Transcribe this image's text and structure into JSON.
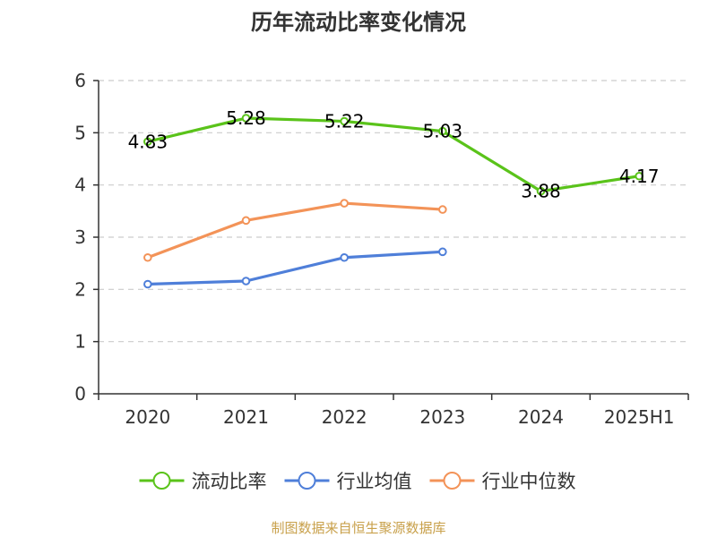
{
  "chart_data": {
    "type": "line",
    "title": "历年流动比率变化情况",
    "categories": [
      "2020",
      "2021",
      "2022",
      "2023",
      "2024",
      "2025H1"
    ],
    "ylim": [
      0,
      6
    ],
    "yticks": [
      "0",
      "1",
      "2",
      "3",
      "4",
      "5",
      "6"
    ],
    "grid": true,
    "legend_position": "bottom",
    "series": [
      {
        "name": "流动比率",
        "color": "#5ac31a",
        "values": [
          4.83,
          5.28,
          5.22,
          5.03,
          3.88,
          4.17
        ],
        "labels": [
          "4.83",
          "5.28",
          "5.22",
          "5.03",
          "3.88",
          "4.17"
        ]
      },
      {
        "name": "行业均值",
        "color": "#4f7fd9",
        "values": [
          2.1,
          2.16,
          2.61,
          2.72,
          null,
          null
        ]
      },
      {
        "name": "行业中位数",
        "color": "#f39358",
        "values": [
          2.61,
          3.32,
          3.65,
          3.53,
          null,
          null
        ]
      }
    ]
  },
  "source_text": "制图数据来自恒生聚源数据库",
  "source_color": "#c8a04a"
}
